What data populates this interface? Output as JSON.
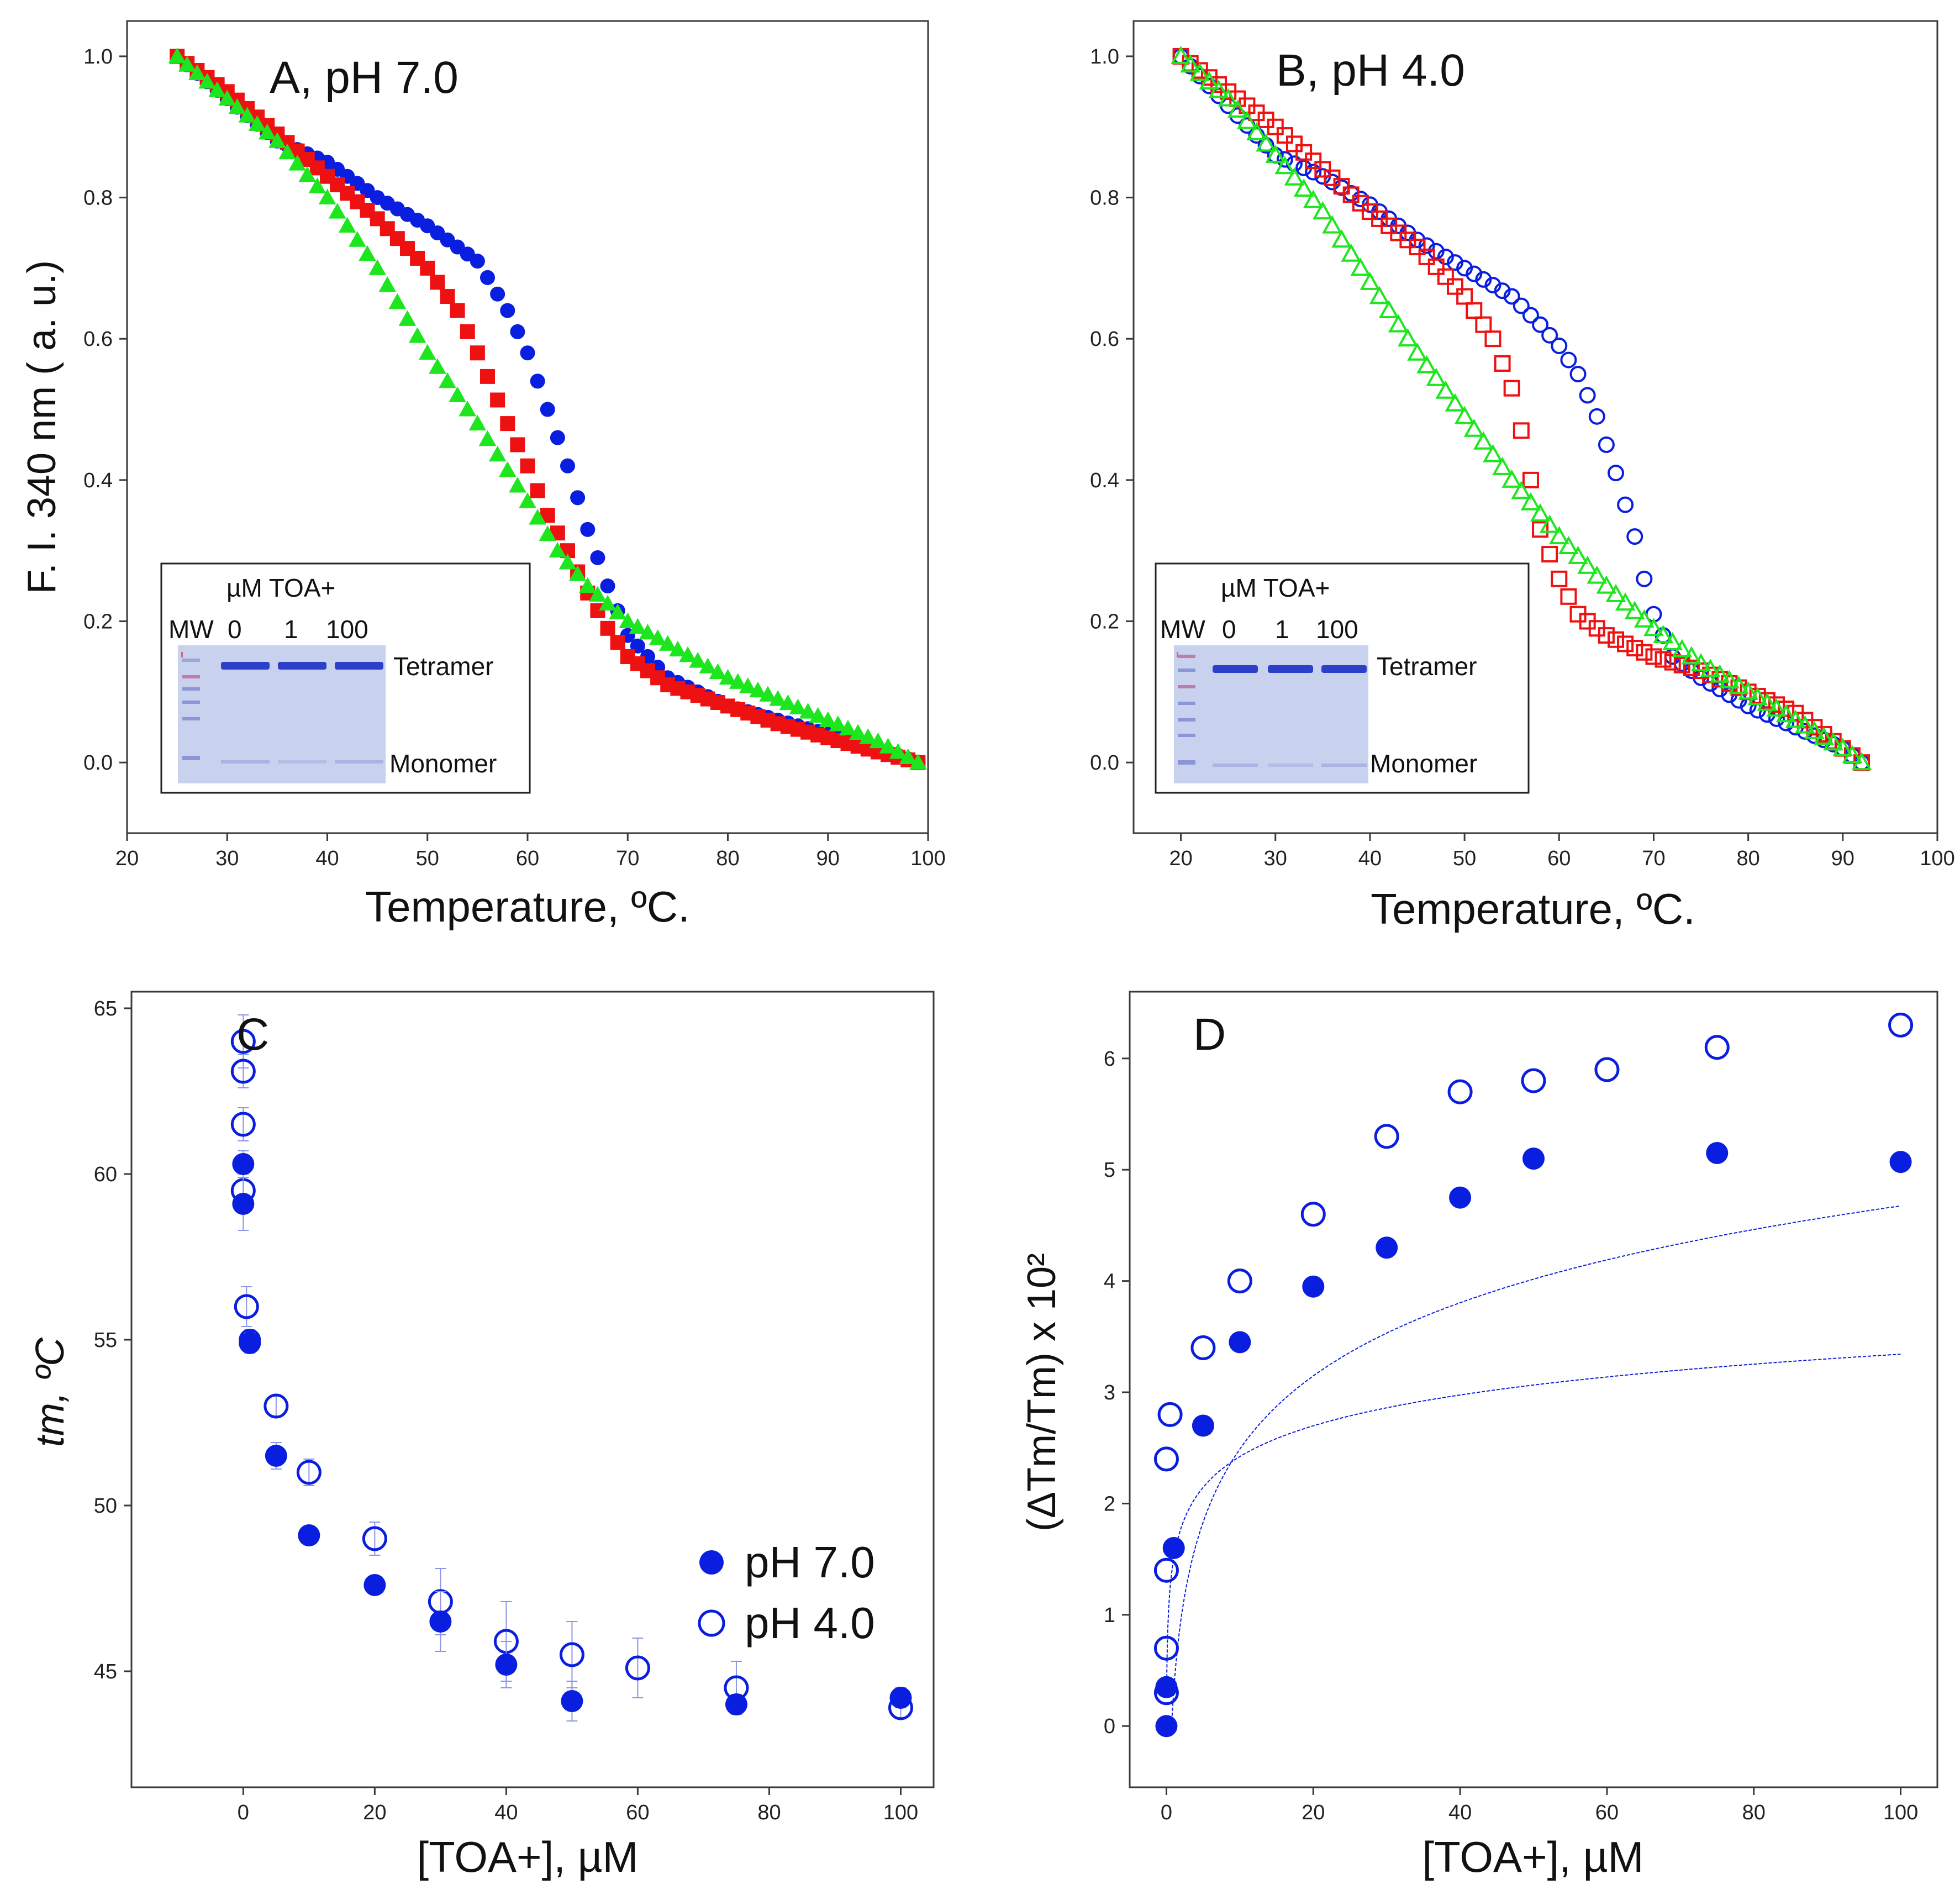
{
  "colors": {
    "blue": "#0a1ee0",
    "red": "#ee1111",
    "green": "#1ee61e",
    "gel_bg": "#c8d2ee",
    "band": "#2b3fc9"
  },
  "chart_data": [
    {
      "id": "A",
      "type": "scatter",
      "title": "A, pH 7.0",
      "xlabel": "Temperature, ºC.",
      "ylabel": "F. I. 340 nm ( a. u.)",
      "xlim": [
        20,
        100
      ],
      "ylim": [
        -0.1,
        1.05
      ],
      "xticks": [
        "20",
        "30",
        "40",
        "50",
        "60",
        "70",
        "80",
        "90",
        "100"
      ],
      "yticks": [
        "0.0",
        "0.2",
        "0.4",
        "0.6",
        "0.8",
        "1.0"
      ],
      "xtick_values": [
        20,
        30,
        40,
        50,
        60,
        70,
        80,
        90,
        100
      ],
      "ytick_values": [
        0,
        0.2,
        0.4,
        0.6,
        0.8,
        1.0
      ],
      "series": [
        {
          "name": "0 µM TOA+",
          "color": "blue",
          "marker": "circle",
          "filled": true,
          "x_start": 25,
          "x_end": 99,
          "step": 1,
          "curve": [
            [
              25,
              1.0
            ],
            [
              30,
              0.94
            ],
            [
              35,
              0.88
            ],
            [
              40,
              0.85
            ],
            [
              45,
              0.8
            ],
            [
              50,
              0.76
            ],
            [
              55,
              0.71
            ],
            [
              58,
              0.64
            ],
            [
              60,
              0.58
            ],
            [
              62,
              0.5
            ],
            [
              64,
              0.42
            ],
            [
              66,
              0.33
            ],
            [
              68,
              0.25
            ],
            [
              70,
              0.18
            ],
            [
              74,
              0.12
            ],
            [
              80,
              0.08
            ],
            [
              85,
              0.06
            ],
            [
              90,
              0.04
            ],
            [
              95,
              0.02
            ],
            [
              99,
              0.0
            ]
          ]
        },
        {
          "name": "1 µM TOA+",
          "color": "red",
          "marker": "square",
          "filled": true,
          "x_start": 25,
          "x_end": 99,
          "step": 1,
          "curve": [
            [
              25,
              1.0
            ],
            [
              30,
              0.95
            ],
            [
              35,
              0.89
            ],
            [
              40,
              0.83
            ],
            [
              45,
              0.77
            ],
            [
              50,
              0.7
            ],
            [
              53,
              0.64
            ],
            [
              55,
              0.58
            ],
            [
              58,
              0.48
            ],
            [
              60,
              0.42
            ],
            [
              62,
              0.35
            ],
            [
              64,
              0.3
            ],
            [
              66,
              0.24
            ],
            [
              68,
              0.19
            ],
            [
              70,
              0.15
            ],
            [
              74,
              0.11
            ],
            [
              80,
              0.08
            ],
            [
              85,
              0.055
            ],
            [
              90,
              0.035
            ],
            [
              95,
              0.015
            ],
            [
              99,
              0.0
            ]
          ]
        },
        {
          "name": "100 µM TOA+",
          "color": "green",
          "marker": "triangle",
          "filled": true,
          "x_start": 25,
          "x_end": 99,
          "step": 1,
          "curve": [
            [
              25,
              1.0
            ],
            [
              30,
              0.94
            ],
            [
              35,
              0.88
            ],
            [
              40,
              0.8
            ],
            [
              45,
              0.7
            ],
            [
              50,
              0.58
            ],
            [
              55,
              0.48
            ],
            [
              60,
              0.37
            ],
            [
              63,
              0.3
            ],
            [
              66,
              0.25
            ],
            [
              70,
              0.2
            ],
            [
              75,
              0.16
            ],
            [
              80,
              0.12
            ],
            [
              85,
              0.09
            ],
            [
              90,
              0.06
            ],
            [
              95,
              0.03
            ],
            [
              99,
              0.0
            ]
          ]
        }
      ]
    },
    {
      "id": "B",
      "type": "scatter",
      "title": "B, pH 4.0",
      "xlabel": "Temperature, ºC.",
      "ylabel": "",
      "xlim": [
        15,
        100
      ],
      "ylim": [
        -0.1,
        1.05
      ],
      "xticks": [
        "20",
        "30",
        "40",
        "50",
        "60",
        "70",
        "80",
        "90",
        "100"
      ],
      "yticks": [
        "0.0",
        "0.2",
        "0.4",
        "0.6",
        "0.8",
        "1.0"
      ],
      "xtick_values": [
        20,
        30,
        40,
        50,
        60,
        70,
        80,
        90,
        100
      ],
      "ytick_values": [
        0,
        0.2,
        0.4,
        0.6,
        0.8,
        1.0
      ],
      "series": [
        {
          "name": "0 µM TOA+",
          "color": "blue",
          "marker": "circle",
          "filled": false,
          "x_start": 20,
          "x_end": 92,
          "step": 1,
          "curve": [
            [
              20,
              1.0
            ],
            [
              25,
              0.93
            ],
            [
              30,
              0.86
            ],
            [
              35,
              0.83
            ],
            [
              40,
              0.79
            ],
            [
              45,
              0.74
            ],
            [
              50,
              0.7
            ],
            [
              55,
              0.66
            ],
            [
              58,
              0.62
            ],
            [
              60,
              0.59
            ],
            [
              62,
              0.55
            ],
            [
              64,
              0.49
            ],
            [
              66,
              0.41
            ],
            [
              68,
              0.32
            ],
            [
              69,
              0.26
            ],
            [
              70,
              0.21
            ],
            [
              72,
              0.15
            ],
            [
              75,
              0.12
            ],
            [
              80,
              0.08
            ],
            [
              85,
              0.05
            ],
            [
              90,
              0.02
            ],
            [
              92,
              0.0
            ]
          ]
        },
        {
          "name": "1 µM TOA+",
          "color": "red",
          "marker": "square",
          "filled": false,
          "x_start": 20,
          "x_end": 92,
          "step": 1,
          "curve": [
            [
              20,
              1.0
            ],
            [
              25,
              0.95
            ],
            [
              30,
              0.9
            ],
            [
              35,
              0.84
            ],
            [
              40,
              0.78
            ],
            [
              45,
              0.73
            ],
            [
              50,
              0.66
            ],
            [
              53,
              0.6
            ],
            [
              55,
              0.53
            ],
            [
              56,
              0.47
            ],
            [
              57,
              0.4
            ],
            [
              58,
              0.33
            ],
            [
              60,
              0.26
            ],
            [
              62,
              0.21
            ],
            [
              65,
              0.18
            ],
            [
              70,
              0.15
            ],
            [
              75,
              0.13
            ],
            [
              80,
              0.1
            ],
            [
              85,
              0.07
            ],
            [
              90,
              0.02
            ],
            [
              92,
              0.0
            ]
          ]
        },
        {
          "name": "100 µM TOA+",
          "color": "green",
          "marker": "triangle",
          "filled": false,
          "x_start": 20,
          "x_end": 92,
          "step": 1,
          "curve": [
            [
              20,
              1.0
            ],
            [
              25,
              0.94
            ],
            [
              30,
              0.86
            ],
            [
              35,
              0.78
            ],
            [
              40,
              0.68
            ],
            [
              45,
              0.58
            ],
            [
              50,
              0.49
            ],
            [
              55,
              0.4
            ],
            [
              60,
              0.32
            ],
            [
              65,
              0.25
            ],
            [
              70,
              0.19
            ],
            [
              75,
              0.14
            ],
            [
              80,
              0.1
            ],
            [
              85,
              0.06
            ],
            [
              90,
              0.02
            ],
            [
              92,
              0.0
            ]
          ]
        }
      ]
    },
    {
      "id": "C",
      "type": "scatter",
      "title": "C",
      "xlabel": "[TOA+], µM",
      "ylabel": "tm, ºC",
      "xlim": [
        -17,
        105
      ],
      "ylim": [
        41.5,
        65.5
      ],
      "xticks": [
        "0",
        "20",
        "40",
        "60",
        "80",
        "100"
      ],
      "yticks": [
        "45",
        "50",
        "55",
        "60",
        "65"
      ],
      "xtick_values": [
        0,
        20,
        40,
        60,
        80,
        100
      ],
      "ytick_values": [
        45,
        50,
        55,
        60,
        65
      ],
      "legend": {
        "pH7_label": "pH 7.0",
        "pH4_label": "pH 4.0",
        "position": "center-right"
      },
      "series": [
        {
          "name": "pH 7.0",
          "filled": true,
          "points": [
            [
              0,
              60.3
            ],
            [
              0,
              59.1
            ],
            [
              1,
              55.0
            ],
            [
              1,
              54.9
            ],
            [
              5,
              51.5
            ],
            [
              10,
              49.1
            ],
            [
              20,
              47.6
            ],
            [
              30,
              46.5
            ],
            [
              40,
              45.2
            ],
            [
              50,
              44.1
            ],
            [
              75,
              44.0
            ],
            [
              100,
              44.2
            ]
          ],
          "errors": [
            0.4,
            0.8,
            0.3,
            0.3,
            0.4,
            0.2,
            0.2,
            0.9,
            0.7,
            0.6,
            0.3,
            0.3
          ]
        },
        {
          "name": "pH 4.0",
          "filled": false,
          "points": [
            [
              0,
              64.0
            ],
            [
              0,
              63.1
            ],
            [
              0,
              61.5
            ],
            [
              0,
              59.5
            ],
            [
              0.5,
              56.0
            ],
            [
              5,
              53.0
            ],
            [
              10,
              51.0
            ],
            [
              20,
              49.0
            ],
            [
              30,
              47.1
            ],
            [
              40,
              45.9
            ],
            [
              50,
              45.5
            ],
            [
              60,
              45.1
            ],
            [
              75,
              44.5
            ],
            [
              100,
              43.9
            ]
          ],
          "errors": [
            0.8,
            0.5,
            0.5,
            0.5,
            0.6,
            0.3,
            0.4,
            0.5,
            1.0,
            1.2,
            1.0,
            0.9,
            0.8,
            0.3
          ]
        }
      ]
    },
    {
      "id": "D",
      "type": "scatter",
      "title": "D",
      "xlabel": "[TOA+], µM",
      "ylabel": "(ΔTm/Tm) x 10²",
      "xlim": [
        -5,
        105
      ],
      "ylim": [
        -0.55,
        6.6
      ],
      "xticks": [
        "0",
        "20",
        "40",
        "60",
        "80",
        "100"
      ],
      "yticks": [
        "0",
        "1",
        "2",
        "3",
        "4",
        "5",
        "6"
      ],
      "xtick_values": [
        0,
        20,
        40,
        60,
        80,
        100
      ],
      "ytick_values": [
        0,
        1,
        2,
        3,
        4,
        5,
        6
      ],
      "series": [
        {
          "name": "pH 7.0",
          "filled": true,
          "points": [
            [
              0,
              0.0
            ],
            [
              0,
              0.35
            ],
            [
              1,
              1.6
            ],
            [
              5,
              2.7
            ],
            [
              10,
              3.45
            ],
            [
              20,
              3.95
            ],
            [
              30,
              4.3
            ],
            [
              40,
              4.75
            ],
            [
              50,
              5.1
            ],
            [
              75,
              5.15
            ],
            [
              100,
              5.07
            ]
          ],
          "fit": {
            "a": 0.3,
            "b": 0.95
          }
        },
        {
          "name": "pH 4.0",
          "filled": false,
          "points": [
            [
              0,
              0.3
            ],
            [
              0,
              0.7
            ],
            [
              0,
              1.4
            ],
            [
              0,
              2.4
            ],
            [
              0.5,
              2.8
            ],
            [
              5,
              3.4
            ],
            [
              10,
              4.0
            ],
            [
              20,
              4.6
            ],
            [
              30,
              5.3
            ],
            [
              40,
              5.7
            ],
            [
              50,
              5.8
            ],
            [
              60,
              5.9
            ],
            [
              75,
              6.1
            ],
            [
              100,
              6.3
            ]
          ],
          "fit": {
            "a": 1.5,
            "b": 0.4
          }
        }
      ]
    }
  ],
  "inset": {
    "header": "µM TOA+",
    "lane_labels": [
      "MW",
      "0",
      "1",
      "100"
    ],
    "band_upper": "Tetramer",
    "band_lower": "Monomer"
  }
}
